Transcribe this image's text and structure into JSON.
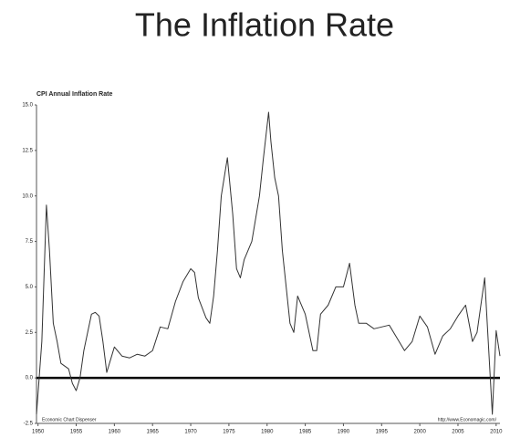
{
  "slide_title": "The Inflation Rate",
  "chart_data": {
    "type": "line",
    "title": "CPI Annual Inflation Rate",
    "x": [
      1949.8,
      1950.5,
      1951.1,
      1951.5,
      1952,
      1952.5,
      1953,
      1954,
      1954.5,
      1955,
      1955.5,
      1956,
      1956.5,
      1957,
      1957.5,
      1958,
      1958.5,
      1959,
      1959.5,
      1960,
      1961,
      1962,
      1963,
      1964,
      1965,
      1966,
      1967,
      1968,
      1969,
      1970,
      1970.5,
      1971,
      1972,
      1972.5,
      1973,
      1973.5,
      1974,
      1974.8,
      1975.5,
      1976,
      1976.5,
      1977,
      1978,
      1979,
      1979.5,
      1980.2,
      1980.5,
      1981,
      1981.5,
      1982,
      1982.5,
      1983,
      1983.5,
      1984,
      1985,
      1986,
      1986.5,
      1987,
      1988,
      1989,
      1990,
      1990.8,
      1991.5,
      1992,
      1993,
      1994,
      1995,
      1996,
      1997,
      1998,
      1999,
      2000,
      2001,
      2002,
      2003,
      2004,
      2005,
      2006,
      2006.9,
      2007.5,
      2008.5,
      2009.5,
      2010,
      2010.5
    ],
    "values": [
      -2.0,
      2.0,
      9.5,
      7.0,
      3.0,
      2.0,
      0.8,
      0.5,
      -0.3,
      -0.7,
      0.0,
      1.5,
      2.5,
      3.5,
      3.6,
      3.4,
      2.0,
      0.3,
      1.0,
      1.7,
      1.2,
      1.1,
      1.3,
      1.2,
      1.5,
      2.8,
      2.7,
      4.2,
      5.3,
      6.0,
      5.8,
      4.4,
      3.3,
      3.0,
      4.5,
      7.0,
      10.0,
      12.1,
      9.0,
      6.0,
      5.5,
      6.5,
      7.5,
      10.0,
      12.0,
      14.6,
      13.0,
      11.0,
      10.0,
      7.0,
      5.0,
      3.0,
      2.5,
      4.5,
      3.5,
      1.5,
      1.5,
      3.5,
      4.0,
      5.0,
      5.0,
      6.3,
      4.0,
      3.0,
      3.0,
      2.7,
      2.8,
      2.9,
      2.2,
      1.5,
      2.0,
      3.4,
      2.8,
      1.3,
      2.3,
      2.7,
      3.4,
      4.0,
      2.0,
      2.5,
      5.5,
      -2.0,
      2.6,
      1.2
    ],
    "color": "#333333",
    "xlim": [
      1949.8,
      2010.5
    ],
    "xticks": [
      1950,
      1955,
      1960,
      1965,
      1970,
      1975,
      1980,
      1985,
      1990,
      1995,
      2000,
      2005,
      2010
    ],
    "ylim": [
      -2.5,
      15
    ],
    "yticks": [
      -2.5,
      {
        "value": 0,
        "label": "0.0"
      },
      2.5,
      {
        "value": 5,
        "label": "5.0"
      },
      7.5,
      {
        "value": 10,
        "label": "10.0"
      },
      12.5,
      {
        "value": 15,
        "label": "15.0"
      }
    ],
    "reference_line": 0,
    "annotations": [
      "Economic Chart Dispenser",
      "http://www.Economagic.com/"
    ]
  }
}
